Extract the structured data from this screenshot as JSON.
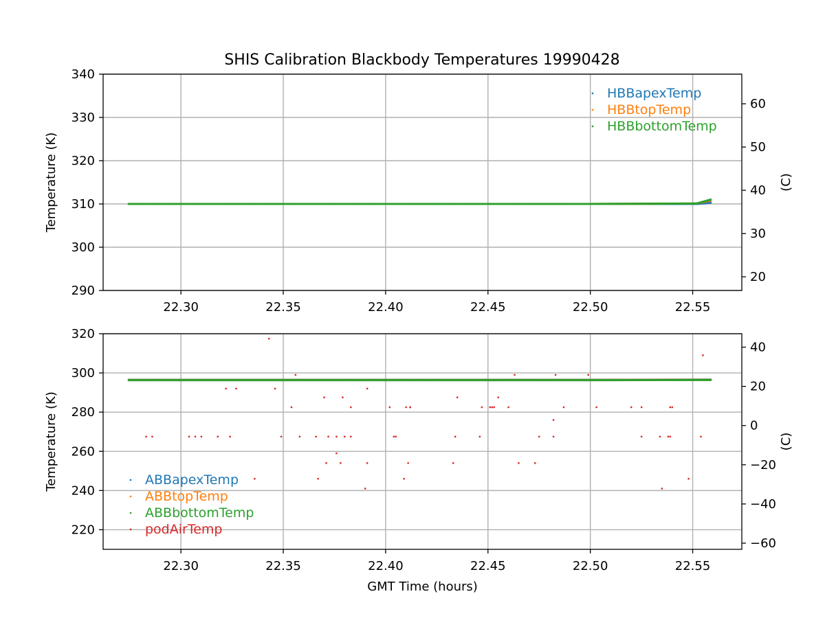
{
  "chart_data": [
    {
      "type": "scatter",
      "title": "SHIS Calibration Blackbody Temperatures 19990428",
      "xlabel": "",
      "ylabel": "Temperature (K)",
      "ylabel_right": "(C)",
      "xlim": [
        22.262,
        22.574
      ],
      "ylim": [
        290,
        340
      ],
      "ylim_right_c": [
        16.85,
        66.85
      ],
      "xticks": [
        "22.30",
        "22.35",
        "22.40",
        "22.45",
        "22.50",
        "22.55"
      ],
      "yticks": [
        "290",
        "300",
        "310",
        "320",
        "330",
        "340"
      ],
      "yticks_right": [
        "20",
        "30",
        "40",
        "50",
        "60"
      ],
      "grid": true,
      "legend": "top-right",
      "series": [
        {
          "name": "HBBapexTemp",
          "color": "#1f77b4",
          "x": [
            22.2745,
            22.3,
            22.35,
            22.4,
            22.45,
            22.5,
            22.552,
            22.555,
            22.5588
          ],
          "y": [
            310.0,
            310.0,
            310.0,
            310.0,
            310.0,
            310.0,
            310.0,
            310.1,
            310.3
          ]
        },
        {
          "name": "HBBtopTemp",
          "color": "#ff7f0e",
          "x": [
            22.2745,
            22.3,
            22.35,
            22.4,
            22.45,
            22.5,
            22.552,
            22.555,
            22.5588
          ],
          "y": [
            310.0,
            310.0,
            310.0,
            310.0,
            310.0,
            310.0,
            310.1,
            310.4,
            310.8
          ]
        },
        {
          "name": "HBBbottomTemp",
          "color": "#2ca02c",
          "x": [
            22.2745,
            22.3,
            22.35,
            22.4,
            22.45,
            22.5,
            22.552,
            22.555,
            22.5588
          ],
          "y": [
            310.0,
            310.0,
            310.0,
            310.0,
            310.0,
            310.0,
            310.1,
            310.5,
            311.0
          ]
        }
      ]
    },
    {
      "type": "scatter",
      "title": "",
      "xlabel": "GMT Time (hours)",
      "ylabel": "Temperature (K)",
      "ylabel_right": "(C)",
      "xlim": [
        22.262,
        22.574
      ],
      "ylim": [
        210,
        320
      ],
      "ylim_right_c": [
        -63.15,
        46.85
      ],
      "xticks": [
        "22.30",
        "22.35",
        "22.40",
        "22.45",
        "22.50",
        "22.55"
      ],
      "yticks": [
        "220",
        "240",
        "260",
        "280",
        "300",
        "320"
      ],
      "yticks_right": [
        "−60",
        "−40",
        "−20",
        "0",
        "20",
        "40"
      ],
      "grid": true,
      "legend": "lower-left",
      "series": [
        {
          "name": "ABBapexTemp",
          "color": "#1f77b4",
          "x": [
            22.2745,
            22.3,
            22.35,
            22.4,
            22.45,
            22.5,
            22.5588
          ],
          "y": [
            296.5,
            296.5,
            296.5,
            296.5,
            296.5,
            296.5,
            296.6
          ]
        },
        {
          "name": "ABBtopTemp",
          "color": "#ff7f0e",
          "x": [
            22.2745,
            22.3,
            22.35,
            22.4,
            22.45,
            22.5,
            22.5588
          ],
          "y": [
            296.4,
            296.4,
            296.4,
            296.4,
            296.4,
            296.4,
            296.5
          ]
        },
        {
          "name": "ABBbottomTemp",
          "color": "#2ca02c",
          "x": [
            22.2745,
            22.3,
            22.35,
            22.4,
            22.45,
            22.5,
            22.5588
          ],
          "y": [
            296.3,
            296.3,
            296.3,
            296.3,
            296.3,
            296.3,
            296.4
          ]
        },
        {
          "name": "podAirTemp",
          "color": "#d62728",
          "x": [
            22.283,
            22.286,
            22.304,
            22.307,
            22.31,
            22.318,
            22.322,
            22.324,
            22.327,
            22.336,
            22.343,
            22.346,
            22.349,
            22.354,
            22.356,
            22.358,
            22.366,
            22.367,
            22.37,
            22.371,
            22.372,
            22.376,
            22.376,
            22.378,
            22.379,
            22.38,
            22.383,
            22.383,
            22.39,
            22.391,
            22.391,
            22.402,
            22.404,
            22.405,
            22.409,
            22.41,
            22.411,
            22.412,
            22.412,
            22.433,
            22.434,
            22.435,
            22.446,
            22.447,
            22.451,
            22.452,
            22.453,
            22.455,
            22.46,
            22.463,
            22.465,
            22.473,
            22.475,
            22.482,
            22.482,
            22.483,
            22.487,
            22.499,
            22.503,
            22.52,
            22.525,
            22.525,
            22.534,
            22.535,
            22.538,
            22.539,
            22.539,
            22.54,
            22.548,
            22.554,
            22.555
          ],
          "y": [
            267.5,
            267.5,
            267.5,
            267.5,
            267.5,
            267.5,
            292,
            267.5,
            292,
            246,
            317.5,
            292,
            267.5,
            282.5,
            299,
            267.5,
            267.5,
            246,
            287.5,
            254,
            267.5,
            259,
            267.5,
            254,
            287.5,
            267.5,
            282.5,
            267.5,
            241,
            254,
            292,
            282.5,
            267.5,
            267.5,
            246,
            282.5,
            254,
            282.5,
            282.5,
            254,
            267.5,
            287.5,
            267.5,
            282.5,
            282.5,
            282.5,
            282.5,
            287.5,
            282.5,
            299,
            254,
            254,
            267.5,
            276,
            267.5,
            299,
            282.5,
            299,
            282.5,
            282.5,
            282.5,
            267.5,
            267.5,
            241,
            267.5,
            267.5,
            282.5,
            282.5,
            246,
            267.5,
            309
          ]
        }
      ]
    }
  ]
}
